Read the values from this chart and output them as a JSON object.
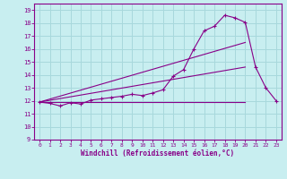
{
  "xlabel": "Windchill (Refroidissement éolien,°C)",
  "bg_color": "#c8eef0",
  "grid_color": "#a8d8dc",
  "line_color": "#880088",
  "xlim": [
    -0.5,
    23.5
  ],
  "ylim": [
    9,
    19.5
  ],
  "yticks": [
    9,
    10,
    11,
    12,
    13,
    14,
    15,
    16,
    17,
    18,
    19
  ],
  "xticks": [
    0,
    1,
    2,
    3,
    4,
    5,
    6,
    7,
    8,
    9,
    10,
    11,
    12,
    13,
    14,
    15,
    16,
    17,
    18,
    19,
    20,
    21,
    22,
    23
  ],
  "curve1_x": [
    0,
    1,
    2,
    3,
    4,
    5,
    6,
    7,
    8,
    9,
    10,
    11,
    12,
    13,
    14,
    15,
    16,
    17,
    18,
    19,
    20,
    21,
    22,
    23
  ],
  "curve1_y": [
    11.9,
    11.8,
    11.6,
    11.85,
    11.75,
    12.05,
    12.15,
    12.25,
    12.35,
    12.5,
    12.4,
    12.6,
    12.85,
    13.9,
    14.4,
    16.0,
    17.4,
    17.75,
    18.6,
    18.4,
    18.05,
    14.6,
    13.0,
    12.0
  ],
  "curve2_x": [
    0,
    20
  ],
  "curve2_y": [
    11.9,
    11.9
  ],
  "curve3_x": [
    0,
    20
  ],
  "curve3_y": [
    11.9,
    16.5
  ],
  "curve4_x": [
    0,
    20
  ],
  "curve4_y": [
    11.9,
    14.6
  ]
}
